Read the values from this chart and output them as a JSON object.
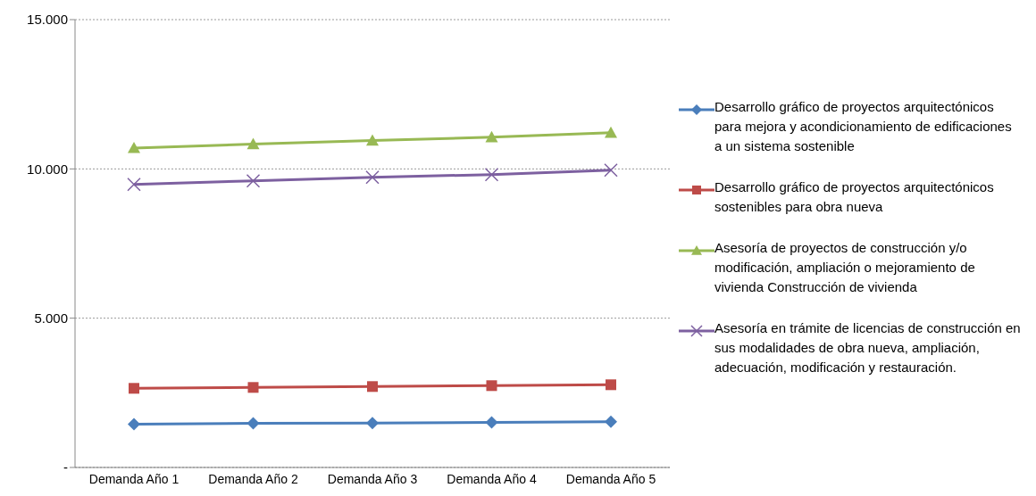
{
  "chart_data": {
    "type": "line",
    "categories": [
      "Demanda Año 1",
      "Demanda Año 2",
      "Demanda Año 3",
      "Demanda Año 4",
      "Demanda Año 5"
    ],
    "series": [
      {
        "name": "Desarrollo gráfico de proyectos arquitectónicos para mejora y acondicionamiento de edificaciones a un sistema sostenible",
        "color": "#4a7ebb",
        "marker": "diamond",
        "values": [
          1450,
          1480,
          1490,
          1510,
          1530
        ]
      },
      {
        "name": "Desarrollo gráfico de proyectos arquitectónicos sostenibles para obra nueva",
        "color": "#be4b48",
        "marker": "square",
        "values": [
          2650,
          2680,
          2710,
          2740,
          2770
        ]
      },
      {
        "name": "Asesoría de proyectos de construcción y/o modificación, ampliación o mejoramiento de vivienda Construcción de vivienda",
        "color": "#98b954",
        "marker": "triangle",
        "values": [
          10700,
          10830,
          10950,
          11060,
          11210
        ]
      },
      {
        "name": "Asesoría en trámite de licencias de construcción en sus modalidades de obra nueva, ampliación, adecuación, modificación y restauración.",
        "color": "#7d60a0",
        "marker": "cross",
        "values": [
          9480,
          9600,
          9720,
          9810,
          9960
        ]
      }
    ],
    "ylim": [
      0,
      15000
    ],
    "yticks": [
      {
        "value": 0,
        "label": "-"
      },
      {
        "value": 5000,
        "label": "5.000"
      },
      {
        "value": 10000,
        "label": "10.000"
      },
      {
        "value": 15000,
        "label": "15.000"
      }
    ],
    "grid": "y",
    "legend": "right"
  }
}
